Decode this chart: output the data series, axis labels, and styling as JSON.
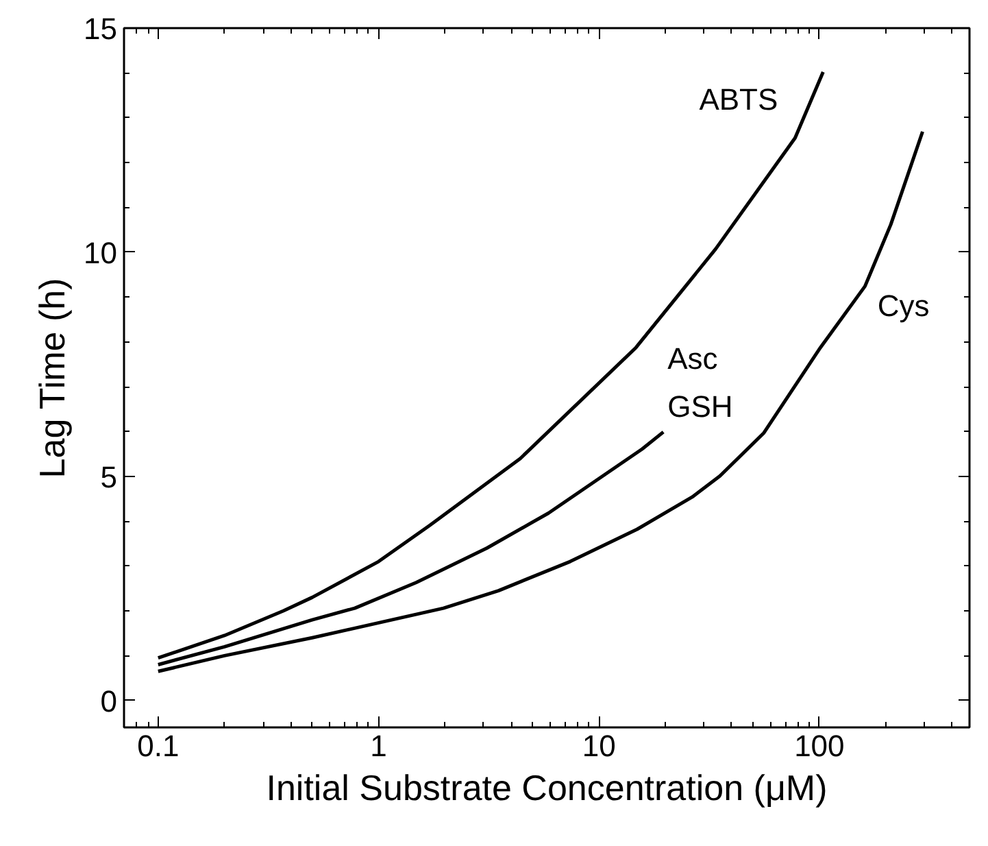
{
  "chart_data": {
    "type": "line",
    "xlabel": "Initial Substrate Concentration (μM)",
    "ylabel": "Lag Time (h)",
    "log": "x",
    "grid": false,
    "marker": "none",
    "line_style": "solid",
    "xlim": [
      0.07,
      480
    ],
    "xticks": [
      0.1,
      1,
      10,
      100
    ],
    "ylim": [
      -0.6,
      15
    ],
    "yticks": [
      0,
      5,
      10,
      15
    ],
    "series": [
      {
        "name": "ABTS",
        "color": "#000000",
        "x": [
          0.1,
          0.2,
          0.37,
          0.5,
          1.0,
          1.7,
          4.4,
          14.7,
          33.8,
          77.6,
          104
        ],
        "values": [
          0.95,
          1.45,
          2.0,
          2.3,
          3.1,
          3.9,
          5.4,
          7.87,
          10.07,
          12.55,
          14.02
        ]
      },
      {
        "name": "Asc\nGSH",
        "color": "#000000",
        "x": [
          0.1,
          0.2,
          0.5,
          0.78,
          1.48,
          3.1,
          5.9,
          15.7,
          19.6
        ],
        "values": [
          0.8,
          1.2,
          1.8,
          2.06,
          2.63,
          3.4,
          4.18,
          5.61,
          5.99
        ]
      },
      {
        "name": "Cys",
        "color": "#000000",
        "x": [
          0.1,
          0.2,
          0.5,
          1.97,
          3.5,
          7.4,
          14.9,
          26.5,
          35.4,
          56,
          101,
          161,
          211,
          294
        ],
        "values": [
          0.65,
          1.0,
          1.4,
          2.06,
          2.45,
          3.1,
          3.82,
          4.54,
          5.01,
          5.97,
          7.87,
          9.24,
          10.62,
          12.69
        ]
      }
    ]
  }
}
